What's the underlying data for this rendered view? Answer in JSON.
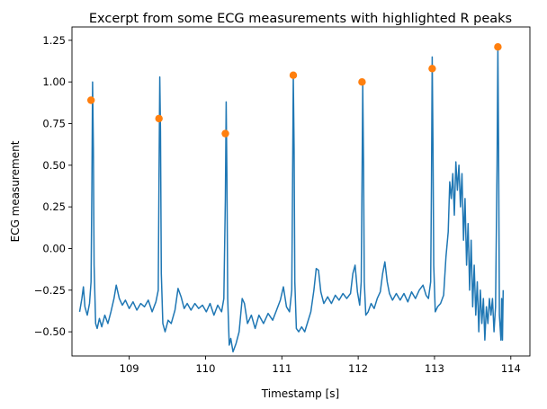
{
  "chart_data": {
    "type": "line",
    "title": "Excerpt from some ECG measurements with highlighted R peaks",
    "xlabel": "Timestamp [s]",
    "ylabel": "ECG measurement",
    "xlim": [
      108.25,
      114.25
    ],
    "ylim": [
      -0.645,
      1.33
    ],
    "xticks": [
      109,
      110,
      111,
      112,
      113,
      114
    ],
    "yticks": [
      -0.5,
      -0.25,
      0.0,
      0.25,
      0.5,
      0.75,
      1.0,
      1.25
    ],
    "ytick_labels": [
      "−0.50",
      "−0.25",
      "0.00",
      "0.25",
      "0.50",
      "0.75",
      "1.00",
      "1.25"
    ],
    "grid": false,
    "legend": "none",
    "series": [
      {
        "role": "ecg-signal",
        "color": "#1f77b4",
        "style": "line",
        "points": [
          [
            108.35,
            -0.38
          ],
          [
            108.38,
            -0.3
          ],
          [
            108.4,
            -0.23
          ],
          [
            108.42,
            -0.35
          ],
          [
            108.45,
            -0.4
          ],
          [
            108.48,
            -0.33
          ],
          [
            108.5,
            -0.2
          ],
          [
            108.51,
            0.35
          ],
          [
            108.52,
            1.0
          ],
          [
            108.53,
            0.6
          ],
          [
            108.54,
            -0.1
          ],
          [
            108.56,
            -0.45
          ],
          [
            108.58,
            -0.48
          ],
          [
            108.61,
            -0.42
          ],
          [
            108.64,
            -0.47
          ],
          [
            108.68,
            -0.4
          ],
          [
            108.72,
            -0.45
          ],
          [
            108.76,
            -0.38
          ],
          [
            108.8,
            -0.3
          ],
          [
            108.83,
            -0.22
          ],
          [
            108.87,
            -0.3
          ],
          [
            108.91,
            -0.34
          ],
          [
            108.95,
            -0.31
          ],
          [
            109.0,
            -0.36
          ],
          [
            109.05,
            -0.32
          ],
          [
            109.1,
            -0.37
          ],
          [
            109.15,
            -0.33
          ],
          [
            109.2,
            -0.35
          ],
          [
            109.25,
            -0.31
          ],
          [
            109.3,
            -0.38
          ],
          [
            109.35,
            -0.32
          ],
          [
            109.38,
            -0.25
          ],
          [
            109.39,
            0.4
          ],
          [
            109.4,
            1.03
          ],
          [
            109.41,
            0.7
          ],
          [
            109.42,
            -0.15
          ],
          [
            109.44,
            -0.45
          ],
          [
            109.47,
            -0.5
          ],
          [
            109.51,
            -0.43
          ],
          [
            109.55,
            -0.45
          ],
          [
            109.6,
            -0.37
          ],
          [
            109.64,
            -0.24
          ],
          [
            109.68,
            -0.29
          ],
          [
            109.72,
            -0.36
          ],
          [
            109.76,
            -0.33
          ],
          [
            109.81,
            -0.37
          ],
          [
            109.86,
            -0.33
          ],
          [
            109.91,
            -0.36
          ],
          [
            109.96,
            -0.34
          ],
          [
            110.01,
            -0.38
          ],
          [
            110.06,
            -0.33
          ],
          [
            110.11,
            -0.4
          ],
          [
            110.16,
            -0.34
          ],
          [
            110.21,
            -0.38
          ],
          [
            110.24,
            -0.3
          ],
          [
            110.26,
            0.3
          ],
          [
            110.27,
            0.88
          ],
          [
            110.28,
            0.45
          ],
          [
            110.29,
            -0.3
          ],
          [
            110.31,
            -0.58
          ],
          [
            110.33,
            -0.54
          ],
          [
            110.36,
            -0.62
          ],
          [
            110.4,
            -0.57
          ],
          [
            110.44,
            -0.5
          ],
          [
            110.48,
            -0.3
          ],
          [
            110.51,
            -0.33
          ],
          [
            110.55,
            -0.45
          ],
          [
            110.6,
            -0.4
          ],
          [
            110.65,
            -0.48
          ],
          [
            110.7,
            -0.4
          ],
          [
            110.76,
            -0.45
          ],
          [
            110.82,
            -0.39
          ],
          [
            110.88,
            -0.43
          ],
          [
            110.93,
            -0.37
          ],
          [
            110.98,
            -0.31
          ],
          [
            111.02,
            -0.23
          ],
          [
            111.06,
            -0.35
          ],
          [
            111.1,
            -0.38
          ],
          [
            111.13,
            -0.25
          ],
          [
            111.14,
            0.4
          ],
          [
            111.15,
            1.04
          ],
          [
            111.16,
            0.6
          ],
          [
            111.17,
            -0.2
          ],
          [
            111.19,
            -0.48
          ],
          [
            111.22,
            -0.5
          ],
          [
            111.26,
            -0.47
          ],
          [
            111.3,
            -0.5
          ],
          [
            111.34,
            -0.44
          ],
          [
            111.38,
            -0.38
          ],
          [
            111.42,
            -0.25
          ],
          [
            111.45,
            -0.12
          ],
          [
            111.48,
            -0.13
          ],
          [
            111.51,
            -0.26
          ],
          [
            111.55,
            -0.33
          ],
          [
            111.6,
            -0.29
          ],
          [
            111.65,
            -0.33
          ],
          [
            111.7,
            -0.28
          ],
          [
            111.75,
            -0.31
          ],
          [
            111.8,
            -0.27
          ],
          [
            111.85,
            -0.3
          ],
          [
            111.9,
            -0.27
          ],
          [
            111.93,
            -0.15
          ],
          [
            111.96,
            -0.1
          ],
          [
            111.99,
            -0.26
          ],
          [
            112.02,
            -0.34
          ],
          [
            112.04,
            -0.2
          ],
          [
            112.05,
            0.4
          ],
          [
            112.06,
            0.98
          ],
          [
            112.07,
            0.5
          ],
          [
            112.08,
            -0.2
          ],
          [
            112.1,
            -0.4
          ],
          [
            112.13,
            -0.38
          ],
          [
            112.17,
            -0.33
          ],
          [
            112.21,
            -0.36
          ],
          [
            112.25,
            -0.3
          ],
          [
            112.29,
            -0.26
          ],
          [
            112.32,
            -0.15
          ],
          [
            112.35,
            -0.08
          ],
          [
            112.38,
            -0.2
          ],
          [
            112.41,
            -0.27
          ],
          [
            112.45,
            -0.31
          ],
          [
            112.5,
            -0.27
          ],
          [
            112.55,
            -0.31
          ],
          [
            112.6,
            -0.27
          ],
          [
            112.65,
            -0.32
          ],
          [
            112.7,
            -0.26
          ],
          [
            112.75,
            -0.3
          ],
          [
            112.8,
            -0.25
          ],
          [
            112.85,
            -0.22
          ],
          [
            112.89,
            -0.28
          ],
          [
            112.92,
            -0.3
          ],
          [
            112.95,
            -0.2
          ],
          [
            112.96,
            0.4
          ],
          [
            112.97,
            1.15
          ],
          [
            112.98,
            0.6
          ],
          [
            112.99,
            -0.1
          ],
          [
            113.01,
            -0.38
          ],
          [
            113.04,
            -0.35
          ],
          [
            113.08,
            -0.33
          ],
          [
            113.12,
            -0.28
          ],
          [
            113.15,
            -0.05
          ],
          [
            113.18,
            0.1
          ],
          [
            113.2,
            0.4
          ],
          [
            113.22,
            0.3
          ],
          [
            113.24,
            0.45
          ],
          [
            113.26,
            0.2
          ],
          [
            113.28,
            0.52
          ],
          [
            113.3,
            0.35
          ],
          [
            113.32,
            0.5
          ],
          [
            113.34,
            0.25
          ],
          [
            113.36,
            0.45
          ],
          [
            113.38,
            0.05
          ],
          [
            113.4,
            0.3
          ],
          [
            113.42,
            -0.1
          ],
          [
            113.44,
            0.15
          ],
          [
            113.46,
            -0.25
          ],
          [
            113.48,
            0.05
          ],
          [
            113.5,
            -0.35
          ],
          [
            113.52,
            -0.1
          ],
          [
            113.54,
            -0.4
          ],
          [
            113.56,
            -0.2
          ],
          [
            113.58,
            -0.5
          ],
          [
            113.6,
            -0.25
          ],
          [
            113.62,
            -0.45
          ],
          [
            113.64,
            -0.3
          ],
          [
            113.66,
            -0.55
          ],
          [
            113.68,
            -0.35
          ],
          [
            113.7,
            -0.45
          ],
          [
            113.72,
            -0.3
          ],
          [
            113.74,
            -0.4
          ],
          [
            113.76,
            -0.3
          ],
          [
            113.78,
            -0.5
          ],
          [
            113.8,
            -0.35
          ],
          [
            113.82,
            0.5
          ],
          [
            113.83,
            1.22
          ],
          [
            113.84,
            0.6
          ],
          [
            113.85,
            -0.4
          ],
          [
            113.87,
            -0.55
          ],
          [
            113.88,
            -0.3
          ],
          [
            113.89,
            -0.55
          ],
          [
            113.9,
            -0.25
          ]
        ]
      },
      {
        "role": "r-peaks",
        "color": "#ff7f0e",
        "style": "markers",
        "points": [
          [
            108.5,
            0.89
          ],
          [
            109.39,
            0.78
          ],
          [
            110.26,
            0.69
          ],
          [
            111.15,
            1.04
          ],
          [
            112.05,
            1.0
          ],
          [
            112.97,
            1.08
          ],
          [
            113.83,
            1.21
          ]
        ]
      }
    ]
  }
}
